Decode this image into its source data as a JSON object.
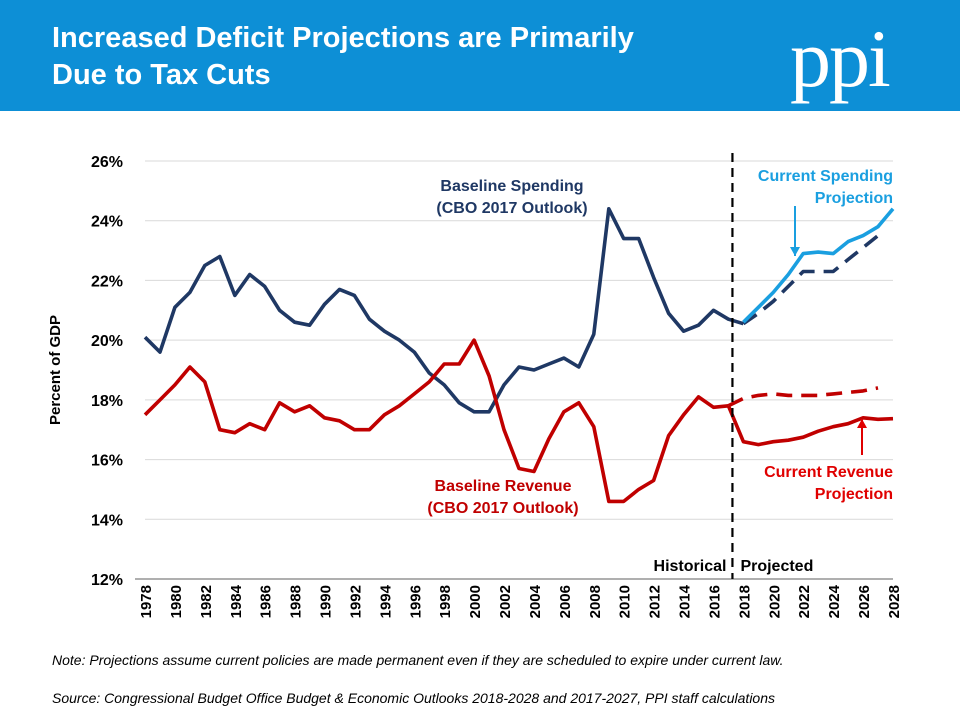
{
  "header": {
    "title_line1": "Increased Deficit Projections are Primarily",
    "title_line2": "Due to Tax Cuts",
    "logo_text": "ppi",
    "background_color": "#0d8fd6"
  },
  "footer": {
    "note": "Note: Projections assume current policies are made permanent even if they are scheduled to expire under current law.",
    "source": "Source: Congressional Budget Office Budget & Economic Outlooks 2018-2028 and 2017-2027, PPI staff calculations"
  },
  "chart_data": {
    "type": "line",
    "ylabel": "Percent of GDP",
    "xlabel": "",
    "ylim": [
      12,
      26
    ],
    "y_ticks": [
      12,
      14,
      16,
      18,
      20,
      22,
      24,
      26
    ],
    "y_tick_suffix": "%",
    "xlim": [
      1978,
      2028
    ],
    "x_ticks": [
      1978,
      1980,
      1982,
      1984,
      1986,
      1988,
      1990,
      1992,
      1994,
      1996,
      1998,
      2000,
      2002,
      2004,
      2006,
      2008,
      2010,
      2012,
      2014,
      2016,
      2018,
      2020,
      2022,
      2024,
      2026,
      2028
    ],
    "grid": "horizontal",
    "divider": {
      "x": 2017,
      "left_label": "Historical",
      "right_label": "Projected"
    },
    "series": [
      {
        "key": "baseline_spending",
        "color": "#1f3864",
        "dash": "none",
        "x": [
          1978,
          1979,
          1980,
          1981,
          1982,
          1983,
          1984,
          1985,
          1986,
          1987,
          1988,
          1989,
          1990,
          1991,
          1992,
          1993,
          1994,
          1995,
          1996,
          1997,
          1998,
          1999,
          2000,
          2001,
          2002,
          2003,
          2004,
          2005,
          2006,
          2007,
          2008,
          2009,
          2010,
          2011,
          2012,
          2013,
          2014,
          2015,
          2016,
          2017,
          2018
        ],
        "y": [
          20.1,
          19.6,
          21.1,
          21.6,
          22.5,
          22.8,
          21.5,
          22.2,
          21.8,
          21.0,
          20.6,
          20.5,
          21.2,
          21.7,
          21.5,
          20.7,
          20.3,
          20.0,
          19.6,
          18.9,
          18.5,
          17.9,
          17.6,
          17.6,
          18.5,
          19.1,
          19.0,
          19.2,
          19.4,
          19.1,
          20.2,
          24.4,
          23.4,
          23.4,
          22.1,
          20.9,
          20.3,
          20.5,
          21.0,
          20.7,
          20.55
        ]
      },
      {
        "key": "baseline_spending_projected",
        "color": "#1f3864",
        "dash": "dashed",
        "x": [
          2018,
          2019,
          2020,
          2021,
          2022,
          2023,
          2024,
          2025,
          2026,
          2027
        ],
        "y": [
          20.55,
          20.9,
          21.3,
          21.8,
          22.3,
          22.3,
          22.3,
          22.7,
          23.1,
          23.5
        ]
      },
      {
        "key": "current_spending_projection",
        "color": "#1a9fe0",
        "dash": "none",
        "x": [
          2018,
          2019,
          2020,
          2021,
          2022,
          2023,
          2024,
          2025,
          2026,
          2027,
          2028
        ],
        "y": [
          20.6,
          21.1,
          21.6,
          22.2,
          22.9,
          22.95,
          22.9,
          23.3,
          23.5,
          23.8,
          24.4
        ]
      },
      {
        "key": "baseline_revenue",
        "color": "#c00000",
        "dash": "none",
        "x": [
          1978,
          1979,
          1980,
          1981,
          1982,
          1983,
          1984,
          1985,
          1986,
          1987,
          1988,
          1989,
          1990,
          1991,
          1992,
          1993,
          1994,
          1995,
          1996,
          1997,
          1998,
          1999,
          2000,
          2001,
          2002,
          2003,
          2004,
          2005,
          2006,
          2007,
          2008,
          2009,
          2010,
          2011,
          2012,
          2013,
          2014,
          2015,
          2016,
          2017
        ],
        "y": [
          17.5,
          18.0,
          18.5,
          19.1,
          18.6,
          17.0,
          16.9,
          17.2,
          17.0,
          17.9,
          17.6,
          17.8,
          17.4,
          17.3,
          17.0,
          17.0,
          17.5,
          17.8,
          18.2,
          18.6,
          19.2,
          19.2,
          20.0,
          18.8,
          17.0,
          15.7,
          15.6,
          16.7,
          17.6,
          17.9,
          17.1,
          14.6,
          14.6,
          15.0,
          15.3,
          16.8,
          17.5,
          18.1,
          17.75,
          17.8
        ]
      },
      {
        "key": "baseline_revenue_projected",
        "color": "#c00000",
        "dash": "dashed",
        "x": [
          2017,
          2018,
          2019,
          2020,
          2021,
          2022,
          2023,
          2024,
          2025,
          2026,
          2027
        ],
        "y": [
          17.8,
          18.05,
          18.15,
          18.2,
          18.15,
          18.15,
          18.15,
          18.2,
          18.25,
          18.3,
          18.4
        ]
      },
      {
        "key": "current_revenue_projection",
        "color": "#c00000",
        "dash": "none",
        "x": [
          2017,
          2018,
          2019,
          2020,
          2021,
          2022,
          2023,
          2024,
          2025,
          2026,
          2027,
          2028
        ],
        "y": [
          17.8,
          16.6,
          16.5,
          16.6,
          16.65,
          16.75,
          16.95,
          17.1,
          17.2,
          17.4,
          17.35,
          17.37
        ]
      }
    ],
    "annotations": [
      {
        "key": "baseline_spending",
        "color": "#1f3864",
        "align": "middle",
        "lines": [
          "Baseline Spending",
          "(CBO 2017 Outlook)"
        ]
      },
      {
        "key": "current_spending",
        "color": "#1a9fe0",
        "align": "end",
        "lines": [
          "Current Spending",
          "Projection"
        ]
      },
      {
        "key": "baseline_revenue",
        "color": "#c00000",
        "align": "middle",
        "lines": [
          "Baseline Revenue",
          "(CBO 2017 Outlook)"
        ]
      },
      {
        "key": "current_revenue",
        "color": "#e00000",
        "align": "end",
        "lines": [
          "Current Revenue",
          "Projection"
        ]
      }
    ]
  }
}
